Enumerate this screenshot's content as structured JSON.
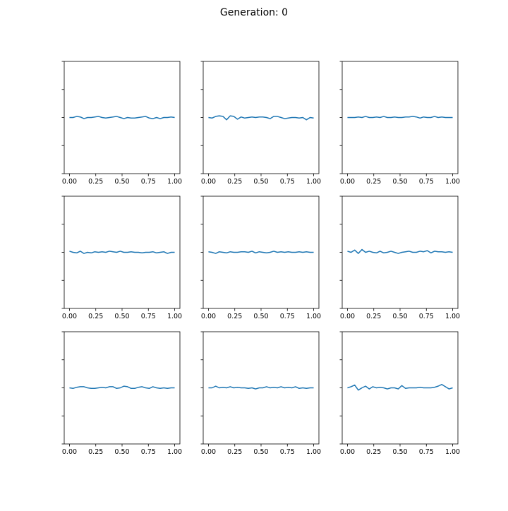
{
  "figure": {
    "title": "Generation: 0"
  },
  "colors": {
    "line": "#1f77b4",
    "axes": "#000000",
    "background": "#ffffff"
  },
  "chart_data": [
    {
      "type": "line",
      "xlim": [
        -0.05,
        1.05
      ],
      "ylim": [
        -1,
        1
      ],
      "grid": false,
      "xticks": [
        0,
        0.25,
        0.5,
        0.75,
        1
      ],
      "xticklabels": [
        "0.00",
        "0.25",
        "0.50",
        "0.75",
        "1.00"
      ],
      "yticks": [
        -1,
        -0.5,
        0,
        0.5,
        1
      ],
      "yticklabels": [
        "",
        "",
        "",
        "",
        ""
      ],
      "x": [
        0,
        0.034,
        0.069,
        0.103,
        0.138,
        0.172,
        0.207,
        0.241,
        0.276,
        0.31,
        0.345,
        0.379,
        0.414,
        0.448,
        0.483,
        0.517,
        0.552,
        0.586,
        0.621,
        0.655,
        0.69,
        0.724,
        0.759,
        0.793,
        0.828,
        0.862,
        0.897,
        0.931,
        0.966,
        1
      ],
      "y": [
        0.0,
        0.0,
        0.02,
        0.01,
        -0.02,
        0.0,
        0.0,
        0.01,
        0.02,
        0.0,
        -0.01,
        0.0,
        0.01,
        0.02,
        0.0,
        -0.02,
        0.0,
        -0.01,
        -0.01,
        0.0,
        0.01,
        0.02,
        -0.01,
        -0.02,
        0.0,
        -0.02,
        0.0,
        0.0,
        0.01,
        0.0
      ]
    },
    {
      "type": "line",
      "xlim": [
        -0.05,
        1.05
      ],
      "ylim": [
        -1,
        1
      ],
      "grid": false,
      "xticks": [
        0,
        0.25,
        0.5,
        0.75,
        1
      ],
      "xticklabels": [
        "0.00",
        "0.25",
        "0.50",
        "0.75",
        "1.00"
      ],
      "yticks": [
        -1,
        -0.5,
        0,
        0.5,
        1
      ],
      "yticklabels": [
        "",
        "",
        "",
        "",
        ""
      ],
      "x": [
        0,
        0.034,
        0.069,
        0.103,
        0.138,
        0.172,
        0.207,
        0.241,
        0.276,
        0.31,
        0.345,
        0.379,
        0.414,
        0.448,
        0.483,
        0.517,
        0.552,
        0.586,
        0.621,
        0.655,
        0.69,
        0.724,
        0.759,
        0.793,
        0.828,
        0.862,
        0.897,
        0.931,
        0.966,
        1
      ],
      "y": [
        0.0,
        -0.01,
        0.02,
        0.03,
        0.02,
        -0.04,
        0.03,
        0.02,
        -0.03,
        0.01,
        -0.01,
        0.0,
        0.01,
        0.0,
        0.01,
        0.01,
        0.0,
        -0.02,
        0.02,
        0.02,
        0.0,
        -0.02,
        -0.01,
        0.0,
        0.0,
        -0.01,
        0.0,
        -0.04,
        0.0,
        -0.01
      ]
    },
    {
      "type": "line",
      "xlim": [
        -0.05,
        1.05
      ],
      "ylim": [
        -1,
        1
      ],
      "grid": false,
      "xticks": [
        0,
        0.25,
        0.5,
        0.75,
        1
      ],
      "xticklabels": [
        "0.00",
        "0.25",
        "0.50",
        "0.75",
        "1.00"
      ],
      "yticks": [
        -1,
        -0.5,
        0,
        0.5,
        1
      ],
      "yticklabels": [
        "",
        "",
        "",
        "",
        ""
      ],
      "x": [
        0,
        0.034,
        0.069,
        0.103,
        0.138,
        0.172,
        0.207,
        0.241,
        0.276,
        0.31,
        0.345,
        0.379,
        0.414,
        0.448,
        0.483,
        0.517,
        0.552,
        0.586,
        0.621,
        0.655,
        0.69,
        0.724,
        0.759,
        0.793,
        0.828,
        0.862,
        0.897,
        0.931,
        0.966,
        1
      ],
      "y": [
        0.0,
        0.0,
        0.0,
        0.01,
        0.0,
        0.02,
        0.0,
        0.0,
        0.01,
        0.0,
        0.02,
        0.0,
        0.0,
        0.01,
        0.0,
        0.0,
        0.01,
        0.01,
        0.02,
        0.01,
        -0.01,
        0.01,
        0.0,
        0.0,
        0.02,
        0.0,
        0.01,
        0.0,
        0.0,
        0.0
      ]
    },
    {
      "type": "line",
      "xlim": [
        -0.05,
        1.05
      ],
      "ylim": [
        -1,
        1
      ],
      "grid": false,
      "xticks": [
        0,
        0.25,
        0.5,
        0.75,
        1
      ],
      "xticklabels": [
        "0.00",
        "0.25",
        "0.50",
        "0.75",
        "1.00"
      ],
      "yticks": [
        -1,
        -0.5,
        0,
        0.5,
        1
      ],
      "yticklabels": [
        "",
        "",
        "",
        "",
        ""
      ],
      "x": [
        0,
        0.034,
        0.069,
        0.103,
        0.138,
        0.172,
        0.207,
        0.241,
        0.276,
        0.31,
        0.345,
        0.379,
        0.414,
        0.448,
        0.483,
        0.517,
        0.552,
        0.586,
        0.621,
        0.655,
        0.69,
        0.724,
        0.759,
        0.793,
        0.828,
        0.862,
        0.897,
        0.931,
        0.966,
        1
      ],
      "y": [
        0.02,
        0.0,
        -0.01,
        0.02,
        -0.02,
        0.0,
        -0.01,
        0.01,
        0.0,
        0.01,
        0.0,
        0.02,
        0.01,
        0.0,
        0.02,
        0.0,
        0.0,
        0.01,
        0.0,
        0.0,
        -0.01,
        0.0,
        0.0,
        0.01,
        -0.01,
        0.0,
        0.01,
        -0.02,
        0.0,
        0.0
      ]
    },
    {
      "type": "line",
      "xlim": [
        -0.05,
        1.05
      ],
      "ylim": [
        -1,
        1
      ],
      "grid": false,
      "xticks": [
        0,
        0.25,
        0.5,
        0.75,
        1
      ],
      "xticklabels": [
        "0.00",
        "0.25",
        "0.50",
        "0.75",
        "1.00"
      ],
      "yticks": [
        -1,
        -0.5,
        0,
        0.5,
        1
      ],
      "yticklabels": [
        "",
        "",
        "",
        "",
        ""
      ],
      "x": [
        0,
        0.034,
        0.069,
        0.103,
        0.138,
        0.172,
        0.207,
        0.241,
        0.276,
        0.31,
        0.345,
        0.379,
        0.414,
        0.448,
        0.483,
        0.517,
        0.552,
        0.586,
        0.621,
        0.655,
        0.69,
        0.724,
        0.759,
        0.793,
        0.828,
        0.862,
        0.897,
        0.931,
        0.966,
        1
      ],
      "y": [
        0.01,
        0.0,
        -0.02,
        0.01,
        0.0,
        -0.01,
        0.01,
        0.0,
        0.0,
        0.01,
        0.01,
        0.0,
        0.02,
        -0.01,
        0.01,
        0.0,
        -0.01,
        0.0,
        0.02,
        0.0,
        0.01,
        0.0,
        0.01,
        0.0,
        0.0,
        0.01,
        0.0,
        0.01,
        0.0,
        0.0
      ]
    },
    {
      "type": "line",
      "xlim": [
        -0.05,
        1.05
      ],
      "ylim": [
        -1,
        1
      ],
      "grid": false,
      "xticks": [
        0,
        0.25,
        0.5,
        0.75,
        1
      ],
      "xticklabels": [
        "0.00",
        "0.25",
        "0.50",
        "0.75",
        "1.00"
      ],
      "yticks": [
        -1,
        -0.5,
        0,
        0.5,
        1
      ],
      "yticklabels": [
        "",
        "",
        "",
        "",
        ""
      ],
      "x": [
        0,
        0.034,
        0.069,
        0.103,
        0.138,
        0.172,
        0.207,
        0.241,
        0.276,
        0.31,
        0.345,
        0.379,
        0.414,
        0.448,
        0.483,
        0.517,
        0.552,
        0.586,
        0.621,
        0.655,
        0.69,
        0.724,
        0.759,
        0.793,
        0.828,
        0.862,
        0.897,
        0.931,
        0.966,
        1
      ],
      "y": [
        0.02,
        0.0,
        0.04,
        -0.02,
        0.05,
        0.0,
        0.02,
        0.0,
        -0.01,
        0.02,
        -0.01,
        0.0,
        0.02,
        0.0,
        -0.02,
        0.0,
        0.01,
        0.02,
        0.0,
        0.0,
        0.02,
        0.01,
        0.03,
        -0.01,
        0.02,
        0.01,
        0.01,
        0.0,
        0.01,
        0.0
      ]
    },
    {
      "type": "line",
      "xlim": [
        -0.05,
        1.05
      ],
      "ylim": [
        -1,
        1
      ],
      "grid": false,
      "xticks": [
        0,
        0.25,
        0.5,
        0.75,
        1
      ],
      "xticklabels": [
        "0.00",
        "0.25",
        "0.50",
        "0.75",
        "1.00"
      ],
      "yticks": [
        -1,
        -0.5,
        0,
        0.5,
        1
      ],
      "yticklabels": [
        "",
        "",
        "",
        "",
        ""
      ],
      "x": [
        0,
        0.034,
        0.069,
        0.103,
        0.138,
        0.172,
        0.207,
        0.241,
        0.276,
        0.31,
        0.345,
        0.379,
        0.414,
        0.448,
        0.483,
        0.517,
        0.552,
        0.586,
        0.621,
        0.655,
        0.69,
        0.724,
        0.759,
        0.793,
        0.828,
        0.862,
        0.897,
        0.931,
        0.966,
        1
      ],
      "y": [
        0.0,
        -0.01,
        0.01,
        0.02,
        0.02,
        0.0,
        -0.01,
        -0.01,
        0.0,
        0.01,
        0.0,
        0.02,
        0.02,
        -0.01,
        0.0,
        0.03,
        0.02,
        -0.01,
        -0.01,
        0.01,
        0.02,
        0.0,
        -0.01,
        0.02,
        0.0,
        -0.01,
        0.0,
        -0.01,
        0.0,
        0.0
      ]
    },
    {
      "type": "line",
      "xlim": [
        -0.05,
        1.05
      ],
      "ylim": [
        -1,
        1
      ],
      "grid": false,
      "xticks": [
        0,
        0.25,
        0.5,
        0.75,
        1
      ],
      "xticklabels": [
        "0.00",
        "0.25",
        "0.50",
        "0.75",
        "1.00"
      ],
      "yticks": [
        -1,
        -0.5,
        0,
        0.5,
        1
      ],
      "yticklabels": [
        "",
        "",
        "",
        "",
        ""
      ],
      "x": [
        0,
        0.034,
        0.069,
        0.103,
        0.138,
        0.172,
        0.207,
        0.241,
        0.276,
        0.31,
        0.345,
        0.379,
        0.414,
        0.448,
        0.483,
        0.517,
        0.552,
        0.586,
        0.621,
        0.655,
        0.69,
        0.724,
        0.759,
        0.793,
        0.828,
        0.862,
        0.897,
        0.931,
        0.966,
        1
      ],
      "y": [
        0.0,
        0.0,
        0.03,
        0.0,
        0.01,
        0.0,
        0.02,
        0.0,
        0.01,
        0.0,
        0.0,
        -0.01,
        0.0,
        -0.02,
        0.0,
        0.0,
        0.02,
        0.0,
        0.01,
        0.0,
        0.02,
        0.0,
        0.01,
        0.0,
        0.02,
        -0.01,
        0.0,
        -0.01,
        0.0,
        0.0
      ]
    },
    {
      "type": "line",
      "xlim": [
        -0.05,
        1.05
      ],
      "ylim": [
        -1,
        1
      ],
      "grid": false,
      "xticks": [
        0,
        0.25,
        0.5,
        0.75,
        1
      ],
      "xticklabels": [
        "0.00",
        "0.25",
        "0.50",
        "0.75",
        "1.00"
      ],
      "yticks": [
        -1,
        -0.5,
        0,
        0.5,
        1
      ],
      "yticklabels": [
        "",
        "",
        "",
        "",
        ""
      ],
      "x": [
        0,
        0.034,
        0.069,
        0.103,
        0.138,
        0.172,
        0.207,
        0.241,
        0.276,
        0.31,
        0.345,
        0.379,
        0.414,
        0.448,
        0.483,
        0.517,
        0.552,
        0.586,
        0.621,
        0.655,
        0.69,
        0.724,
        0.759,
        0.793,
        0.828,
        0.862,
        0.897,
        0.931,
        0.966,
        1
      ],
      "y": [
        0.0,
        0.02,
        0.05,
        -0.04,
        0.0,
        0.03,
        -0.02,
        0.02,
        0.0,
        0.01,
        0.0,
        -0.02,
        0.0,
        0.0,
        -0.02,
        0.04,
        -0.01,
        0.0,
        0.0,
        0.0,
        0.01,
        0.0,
        0.0,
        0.0,
        0.01,
        0.03,
        0.06,
        0.02,
        -0.02,
        0.0
      ]
    }
  ]
}
